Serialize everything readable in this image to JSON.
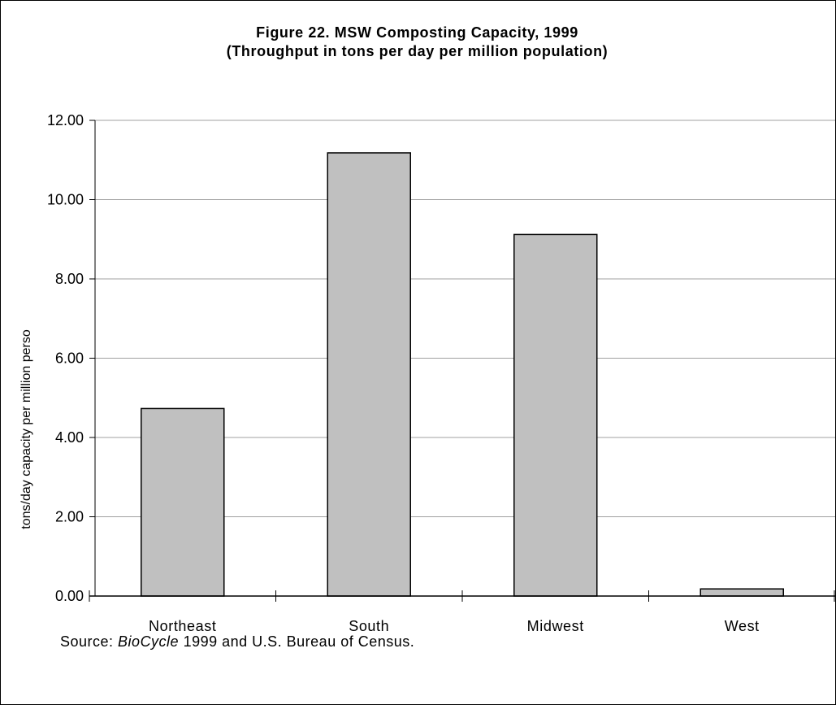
{
  "chart_data": {
    "type": "bar",
    "title": "Figure 22. MSW Composting Capacity, 1999",
    "subtitle": "(Throughput in tons per day per million population)",
    "ylabel": "tons/day capacity per million perso",
    "xlabel": "",
    "categories": [
      "Northeast",
      "South",
      "Midwest",
      "West"
    ],
    "values": [
      4.73,
      11.18,
      9.12,
      0.18
    ],
    "ylim": [
      0,
      12
    ],
    "yticks": [
      "0.00",
      "2.00",
      "4.00",
      "6.00",
      "8.00",
      "10.00",
      "12.00"
    ],
    "grid": true,
    "bar_color": "#c0c0c0",
    "source": {
      "prefix": "Source: ",
      "italic": "BioCycle",
      "suffix": " 1999 and U.S. Bureau of Census."
    }
  }
}
